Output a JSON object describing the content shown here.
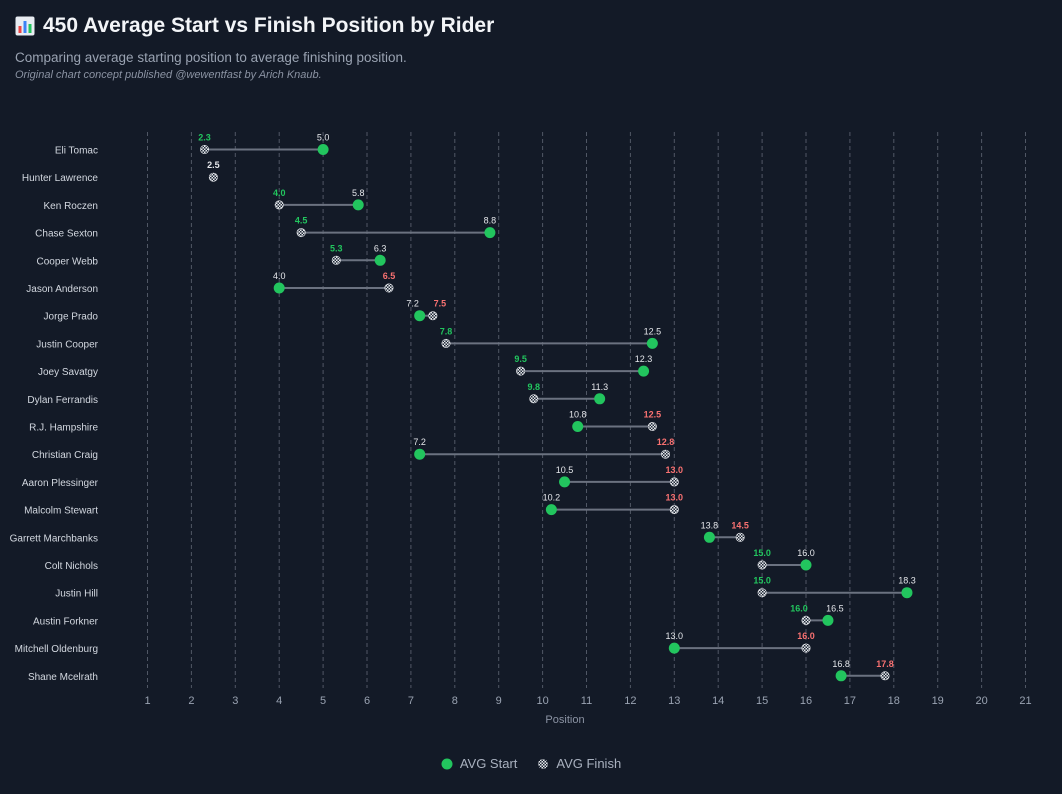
{
  "header": {
    "title": "450 Average Start vs Finish Position by Rider",
    "subtitle": "Comparing average starting position to average finishing position.",
    "credit": "Original chart concept published @wewentfast by Arich Knaub."
  },
  "legend": {
    "start_label": "AVG Start",
    "finish_label": "AVG Finish"
  },
  "colors": {
    "background": "#131a27",
    "start": "#22c55e",
    "better": "#22c55e",
    "worse": "#f87171",
    "neutral": "#e5e7eb",
    "connector": "#6b7280",
    "grid": "#6b7280"
  },
  "chart_data": {
    "type": "dumbbell",
    "xlabel": "Position",
    "xlim": [
      0.5,
      21.5
    ],
    "xticks": [
      1,
      2,
      3,
      4,
      5,
      6,
      7,
      8,
      9,
      10,
      11,
      12,
      13,
      14,
      15,
      16,
      17,
      18,
      19,
      20,
      21
    ],
    "grid": "vertical dashed",
    "legend_position": "bottom-center",
    "riders": [
      {
        "name": "Eli Tomac",
        "start": 5.0,
        "finish": 2.3,
        "start_label": "5.0",
        "finish_label": "2.3"
      },
      {
        "name": "Hunter Lawrence",
        "start": 2.5,
        "finish": 2.5,
        "start_label": "",
        "finish_label": "2.5"
      },
      {
        "name": "Ken Roczen",
        "start": 5.8,
        "finish": 4.0,
        "start_label": "5.8",
        "finish_label": "4.0"
      },
      {
        "name": "Chase Sexton",
        "start": 8.8,
        "finish": 4.5,
        "start_label": "8.8",
        "finish_label": "4.5"
      },
      {
        "name": "Cooper Webb",
        "start": 6.3,
        "finish": 5.3,
        "start_label": "6.3",
        "finish_label": "5.3"
      },
      {
        "name": "Jason Anderson",
        "start": 4.0,
        "finish": 6.5,
        "start_label": "4.0",
        "finish_label": "6.5"
      },
      {
        "name": "Jorge Prado",
        "start": 7.2,
        "finish": 7.5,
        "start_label": "7.2",
        "finish_label": "7.5"
      },
      {
        "name": "Justin Cooper",
        "start": 12.5,
        "finish": 7.8,
        "start_label": "12.5",
        "finish_label": "7.8"
      },
      {
        "name": "Joey Savatgy",
        "start": 12.3,
        "finish": 9.5,
        "start_label": "12.3",
        "finish_label": "9.5"
      },
      {
        "name": "Dylan Ferrandis",
        "start": 11.3,
        "finish": 9.8,
        "start_label": "11.3",
        "finish_label": "9.8"
      },
      {
        "name": "R.J. Hampshire",
        "start": 10.8,
        "finish": 12.5,
        "start_label": "10.8",
        "finish_label": "12.5"
      },
      {
        "name": "Christian Craig",
        "start": 7.2,
        "finish": 12.8,
        "start_label": "7.2",
        "finish_label": "12.8"
      },
      {
        "name": "Aaron Plessinger",
        "start": 10.5,
        "finish": 13.0,
        "start_label": "10.5",
        "finish_label": "13.0"
      },
      {
        "name": "Malcolm Stewart",
        "start": 10.2,
        "finish": 13.0,
        "start_label": "10.2",
        "finish_label": "13.0"
      },
      {
        "name": "Garrett Marchbanks",
        "start": 13.8,
        "finish": 14.5,
        "start_label": "13.8",
        "finish_label": "14.5"
      },
      {
        "name": "Colt Nichols",
        "start": 16.0,
        "finish": 15.0,
        "start_label": "16.0",
        "finish_label": "15.0"
      },
      {
        "name": "Justin Hill",
        "start": 18.3,
        "finish": 15.0,
        "start_label": "18.3",
        "finish_label": "15.0"
      },
      {
        "name": "Austin Forkner",
        "start": 16.5,
        "finish": 16.0,
        "start_label": "16.5",
        "finish_label": "16.0"
      },
      {
        "name": "Mitchell Oldenburg",
        "start": 13.0,
        "finish": 16.0,
        "start_label": "13.0",
        "finish_label": "16.0"
      },
      {
        "name": "Shane Mcelrath",
        "start": 16.8,
        "finish": 17.8,
        "start_label": "16.8",
        "finish_label": "17.8"
      }
    ]
  }
}
